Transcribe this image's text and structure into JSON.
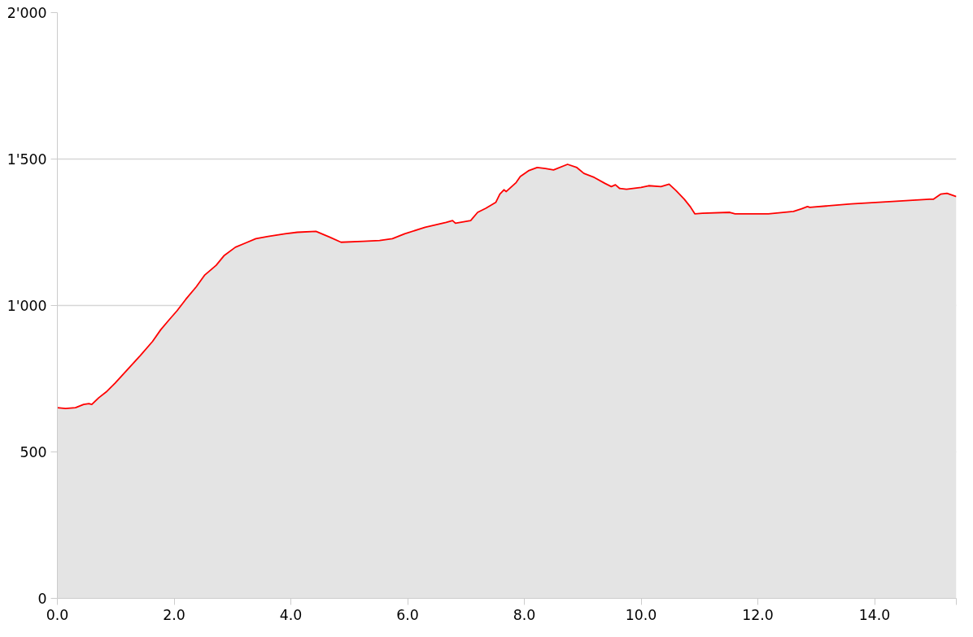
{
  "chart_data": {
    "type": "area",
    "grid": "y",
    "xlim": [
      0,
      15.4
    ],
    "ylim": [
      0,
      2000
    ],
    "xticks": [
      {
        "value": 0,
        "label": "0.0"
      },
      {
        "value": 2,
        "label": "2.0"
      },
      {
        "value": 4,
        "label": "4.0"
      },
      {
        "value": 6,
        "label": "6.0"
      },
      {
        "value": 8,
        "label": "8.0"
      },
      {
        "value": 10,
        "label": "10.0"
      },
      {
        "value": 12,
        "label": "12.0"
      },
      {
        "value": 14,
        "label": "14.0"
      },
      {
        "value": 15.4,
        "label": null
      }
    ],
    "yticks": [
      0,
      500,
      {
        "value": 1000,
        "label": "1'000"
      },
      {
        "value": 1500,
        "label": "1'500"
      },
      {
        "value": 2000,
        "label": "2'000"
      }
    ],
    "series": [
      {
        "color": "#ff0000",
        "x": [
          0,
          0.14,
          0.31,
          0.45,
          0.54,
          0.59,
          0.71,
          0.85,
          0.99,
          1.2,
          1.42,
          1.63,
          1.77,
          1.91,
          2.05,
          2.2,
          2.38,
          2.52,
          2.72,
          2.86,
          3.05,
          3.23,
          3.4,
          3.61,
          3.9,
          4.11,
          4.43,
          4.67,
          4.86,
          5.24,
          5.52,
          5.74,
          5.95,
          6.3,
          6.66,
          6.77,
          6.82,
          7.0,
          7.08,
          7.2,
          7.34,
          7.44,
          7.51,
          7.58,
          7.65,
          7.69,
          7.86,
          7.93,
          8.07,
          8.22,
          8.36,
          8.5,
          8.74,
          8.9,
          9.02,
          9.2,
          9.38,
          9.49,
          9.56,
          9.63,
          9.75,
          10.0,
          10.13,
          10.34,
          10.48,
          10.6,
          10.74,
          10.84,
          10.92,
          11.05,
          11.52,
          11.61,
          12.18,
          12.61,
          12.75,
          12.85,
          12.89,
          13.6,
          14.31,
          14.94,
          15.01,
          15.13,
          15.24,
          15.4
        ],
        "values": [
          651,
          648,
          651,
          662,
          665,
          662,
          685,
          707,
          735,
          781,
          829,
          877,
          917,
          950,
          982,
          1021,
          1064,
          1103,
          1137,
          1171,
          1199,
          1214,
          1228,
          1236,
          1245,
          1250,
          1253,
          1233,
          1216,
          1219,
          1222,
          1228,
          1245,
          1267,
          1284,
          1290,
          1281,
          1287,
          1290,
          1318,
          1332,
          1344,
          1352,
          1380,
          1395,
          1389,
          1420,
          1440,
          1460,
          1471,
          1468,
          1463,
          1482,
          1471,
          1451,
          1437,
          1417,
          1406,
          1412,
          1400,
          1397,
          1403,
          1409,
          1406,
          1414,
          1392,
          1363,
          1338,
          1313,
          1315,
          1318,
          1313,
          1313,
          1321,
          1330,
          1338,
          1335,
          1347,
          1355,
          1363,
          1363,
          1380,
          1383,
          1372
        ]
      }
    ]
  }
}
